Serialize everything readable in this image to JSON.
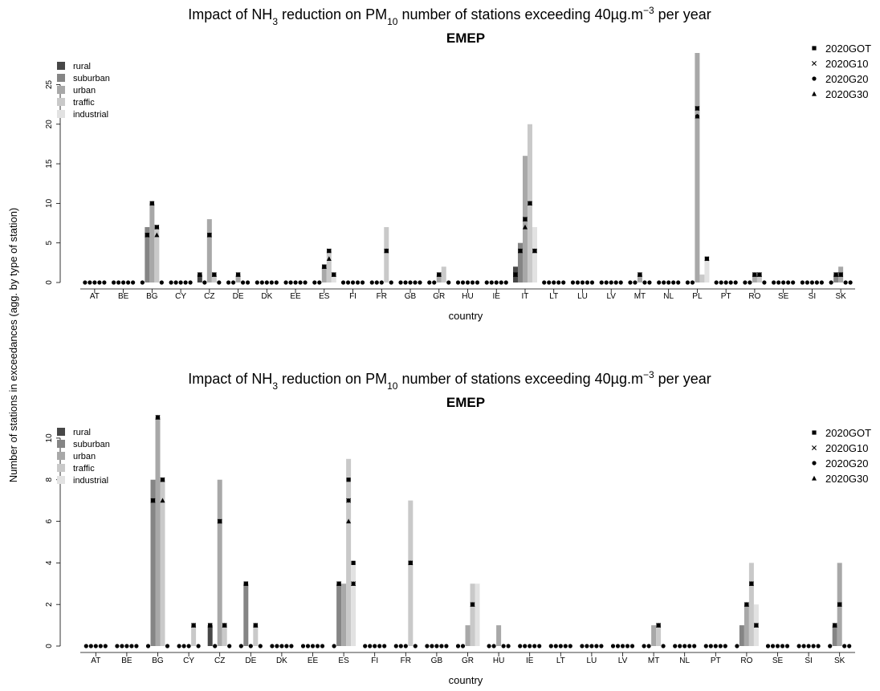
{
  "shared_ylabel": "Number of stations in exceedances (agg. by type of station)",
  "station_types": [
    {
      "name": "rural",
      "color": "#474747"
    },
    {
      "name": "suburban",
      "color": "#858585"
    },
    {
      "name": "urban",
      "color": "#a8a8a8"
    },
    {
      "name": "traffic",
      "color": "#c9c9c9"
    },
    {
      "name": "industrial",
      "color": "#e2e2e2"
    }
  ],
  "scenarios": [
    {
      "name": "2020GOT",
      "marker": "square"
    },
    {
      "name": "2020G10",
      "marker": "cross"
    },
    {
      "name": "2020G20",
      "marker": "circle"
    },
    {
      "name": "2020G30",
      "marker": "triangle"
    }
  ],
  "chart_data": [
    {
      "type": "bar",
      "title_parts": [
        "Impact of NH",
        "3",
        " reduction on PM",
        "10",
        " number of stations exceeding 40µg.m",
        "−3",
        " per year"
      ],
      "subtitle": "EMEP",
      "xlabel": "country",
      "ylabel": "Number of stations in exceedances (agg. by type of station)",
      "ylim": [
        0,
        29
      ],
      "yticks": [
        0,
        5,
        10,
        15,
        20,
        25
      ],
      "categories": [
        "AT",
        "BE",
        "BG",
        "CY",
        "CZ",
        "DE",
        "DK",
        "EE",
        "ES",
        "FI",
        "FR",
        "GB",
        "GR",
        "HU",
        "IE",
        "IT",
        "LT",
        "LU",
        "LV",
        "MT",
        "NL",
        "PL",
        "PT",
        "RO",
        "SE",
        "SI",
        "SK"
      ],
      "series": [
        {
          "name": "rural",
          "values": [
            0,
            0,
            0,
            0,
            1,
            0,
            0,
            0,
            0,
            0,
            0,
            0,
            0,
            0,
            0,
            2,
            0,
            0,
            0,
            0,
            0,
            0,
            0,
            0,
            0,
            0,
            0
          ]
        },
        {
          "name": "suburban",
          "values": [
            0,
            0,
            7,
            0,
            0,
            0,
            0,
            0,
            0,
            0,
            0,
            0,
            0,
            0,
            0,
            5,
            0,
            0,
            0,
            0,
            0,
            0,
            0,
            0,
            0,
            0,
            1
          ]
        },
        {
          "name": "urban",
          "values": [
            0,
            0,
            10,
            0,
            8,
            1,
            0,
            0,
            2,
            0,
            0,
            0,
            1,
            0,
            0,
            16,
            0,
            0,
            0,
            1,
            0,
            29,
            0,
            1,
            0,
            0,
            2
          ]
        },
        {
          "name": "traffic",
          "values": [
            0,
            0,
            7,
            0,
            1,
            0,
            0,
            0,
            4,
            0,
            7,
            0,
            2,
            0,
            0,
            20,
            0,
            0,
            0,
            0,
            0,
            1,
            0,
            1,
            0,
            0,
            0
          ]
        },
        {
          "name": "industrial",
          "values": [
            0,
            0,
            0,
            0,
            0,
            0,
            0,
            0,
            1,
            0,
            0,
            0,
            0,
            0,
            0,
            7,
            0,
            0,
            0,
            0,
            0,
            3,
            0,
            0,
            0,
            0,
            0
          ]
        }
      ],
      "scenario_points": [
        {
          "country": "BG",
          "type": "suburban",
          "values": [
            6,
            6,
            6,
            6
          ]
        },
        {
          "country": "BG",
          "type": "urban",
          "values": [
            10,
            10,
            10,
            10
          ]
        },
        {
          "country": "BG",
          "type": "traffic",
          "values": [
            7,
            7,
            7,
            6
          ]
        },
        {
          "country": "CZ",
          "type": "rural",
          "values": [
            1,
            1,
            1,
            1
          ]
        },
        {
          "country": "CZ",
          "type": "urban",
          "values": [
            6,
            6,
            6,
            6
          ]
        },
        {
          "country": "CZ",
          "type": "traffic",
          "values": [
            1,
            1,
            1,
            1
          ]
        },
        {
          "country": "DE",
          "type": "urban",
          "values": [
            1,
            1,
            1,
            1
          ]
        },
        {
          "country": "ES",
          "type": "urban",
          "values": [
            2,
            2,
            2,
            2
          ]
        },
        {
          "country": "ES",
          "type": "traffic",
          "values": [
            4,
            4,
            4,
            3
          ]
        },
        {
          "country": "ES",
          "type": "industrial",
          "values": [
            1,
            1,
            1,
            1
          ]
        },
        {
          "country": "FR",
          "type": "traffic",
          "values": [
            4,
            4,
            4,
            4
          ]
        },
        {
          "country": "GR",
          "type": "urban",
          "values": [
            1,
            1,
            1,
            1
          ]
        },
        {
          "country": "IT",
          "type": "rural",
          "values": [
            1,
            1,
            1,
            1
          ]
        },
        {
          "country": "IT",
          "type": "suburban",
          "values": [
            4,
            4,
            4,
            4
          ]
        },
        {
          "country": "IT",
          "type": "urban",
          "values": [
            8,
            8,
            8,
            7
          ]
        },
        {
          "country": "IT",
          "type": "traffic",
          "values": [
            10,
            10,
            10,
            10
          ]
        },
        {
          "country": "IT",
          "type": "industrial",
          "values": [
            4,
            4,
            4,
            4
          ]
        },
        {
          "country": "MT",
          "type": "urban",
          "values": [
            1,
            1,
            1,
            1
          ]
        },
        {
          "country": "PL",
          "type": "urban",
          "values": [
            22,
            22,
            21,
            21
          ]
        },
        {
          "country": "PL",
          "type": "industrial",
          "values": [
            3,
            3,
            3,
            3
          ]
        },
        {
          "country": "RO",
          "type": "urban",
          "values": [
            1,
            1,
            1,
            1
          ]
        },
        {
          "country": "RO",
          "type": "traffic",
          "values": [
            1,
            1,
            1,
            1
          ]
        },
        {
          "country": "SK",
          "type": "suburban",
          "values": [
            1,
            1,
            1,
            1
          ]
        },
        {
          "country": "SK",
          "type": "urban",
          "values": [
            1,
            1,
            1,
            1
          ]
        }
      ],
      "legend_position": "top-left (types), top-right (scenarios)",
      "grid": false
    },
    {
      "type": "bar",
      "title_parts": [
        "Impact of NH",
        "3",
        " reduction on PM",
        "10",
        " number of stations exceeding 40µg.m",
        "−3",
        " per year"
      ],
      "subtitle": "EMEP",
      "xlabel": "country",
      "ylabel": "Number of stations in exceedances (agg. by type of station)",
      "ylim": [
        0,
        11
      ],
      "yticks": [
        0,
        2,
        4,
        6,
        8,
        10
      ],
      "categories": [
        "AT",
        "BE",
        "BG",
        "CY",
        "CZ",
        "DE",
        "DK",
        "EE",
        "ES",
        "FI",
        "FR",
        "GB",
        "GR",
        "HU",
        "IE",
        "LT",
        "LU",
        "LV",
        "MT",
        "NL",
        "PT",
        "RO",
        "SE",
        "SI",
        "SK"
      ],
      "series": [
        {
          "name": "rural",
          "values": [
            0,
            0,
            0,
            0,
            1,
            0,
            0,
            0,
            0,
            0,
            0,
            0,
            0,
            0,
            0,
            0,
            0,
            0,
            0,
            0,
            0,
            0,
            0,
            0,
            0
          ]
        },
        {
          "name": "suburban",
          "values": [
            0,
            0,
            8,
            0,
            0,
            3,
            0,
            0,
            3,
            0,
            0,
            0,
            0,
            0,
            0,
            0,
            0,
            0,
            0,
            0,
            0,
            1,
            0,
            0,
            1
          ]
        },
        {
          "name": "urban",
          "values": [
            0,
            0,
            11,
            0,
            8,
            0,
            0,
            0,
            3,
            0,
            0,
            0,
            1,
            1,
            0,
            0,
            0,
            0,
            1,
            0,
            0,
            2,
            0,
            0,
            4
          ]
        },
        {
          "name": "traffic",
          "values": [
            0,
            0,
            8,
            1,
            1,
            1,
            0,
            0,
            9,
            0,
            7,
            0,
            3,
            0,
            0,
            0,
            0,
            0,
            1,
            0,
            0,
            4,
            0,
            0,
            0
          ]
        },
        {
          "name": "industrial",
          "values": [
            0,
            0,
            0,
            0,
            0,
            0,
            0,
            0,
            4,
            0,
            0,
            0,
            3,
            0,
            0,
            0,
            0,
            0,
            0,
            0,
            0,
            2,
            0,
            0,
            0
          ]
        }
      ],
      "scenario_points": [
        {
          "country": "BG",
          "type": "suburban",
          "values": [
            7,
            7,
            7,
            7
          ]
        },
        {
          "country": "BG",
          "type": "urban",
          "values": [
            11,
            11,
            11,
            11
          ]
        },
        {
          "country": "BG",
          "type": "traffic",
          "values": [
            8,
            8,
            8,
            7
          ]
        },
        {
          "country": "CY",
          "type": "traffic",
          "values": [
            1,
            1,
            1,
            1
          ]
        },
        {
          "country": "CZ",
          "type": "rural",
          "values": [
            1,
            1,
            1,
            1
          ]
        },
        {
          "country": "CZ",
          "type": "urban",
          "values": [
            6,
            6,
            6,
            6
          ]
        },
        {
          "country": "CZ",
          "type": "traffic",
          "values": [
            1,
            1,
            1,
            1
          ]
        },
        {
          "country": "DE",
          "type": "suburban",
          "values": [
            3,
            3,
            3,
            3
          ]
        },
        {
          "country": "DE",
          "type": "traffic",
          "values": [
            1,
            1,
            1,
            1
          ]
        },
        {
          "country": "ES",
          "type": "suburban",
          "values": [
            3,
            3,
            3,
            3
          ]
        },
        {
          "country": "ES",
          "type": "traffic",
          "values": [
            8,
            7,
            7,
            6
          ]
        },
        {
          "country": "ES",
          "type": "industrial",
          "values": [
            4,
            3,
            3,
            3
          ]
        },
        {
          "country": "FR",
          "type": "traffic",
          "values": [
            4,
            4,
            4,
            4
          ]
        },
        {
          "country": "GR",
          "type": "traffic",
          "values": [
            2,
            2,
            2,
            2
          ]
        },
        {
          "country": "MT",
          "type": "traffic",
          "values": [
            1,
            1,
            1,
            1
          ]
        },
        {
          "country": "RO",
          "type": "urban",
          "values": [
            2,
            2,
            2,
            2
          ]
        },
        {
          "country": "RO",
          "type": "traffic",
          "values": [
            3,
            3,
            3,
            3
          ]
        },
        {
          "country": "RO",
          "type": "industrial",
          "values": [
            1,
            1,
            1,
            1
          ]
        },
        {
          "country": "SK",
          "type": "suburban",
          "values": [
            1,
            1,
            1,
            1
          ]
        },
        {
          "country": "SK",
          "type": "urban",
          "values": [
            2,
            2,
            2,
            2
          ]
        }
      ],
      "legend_position": "top-left (types), top-right (scenarios)",
      "grid": false
    }
  ]
}
